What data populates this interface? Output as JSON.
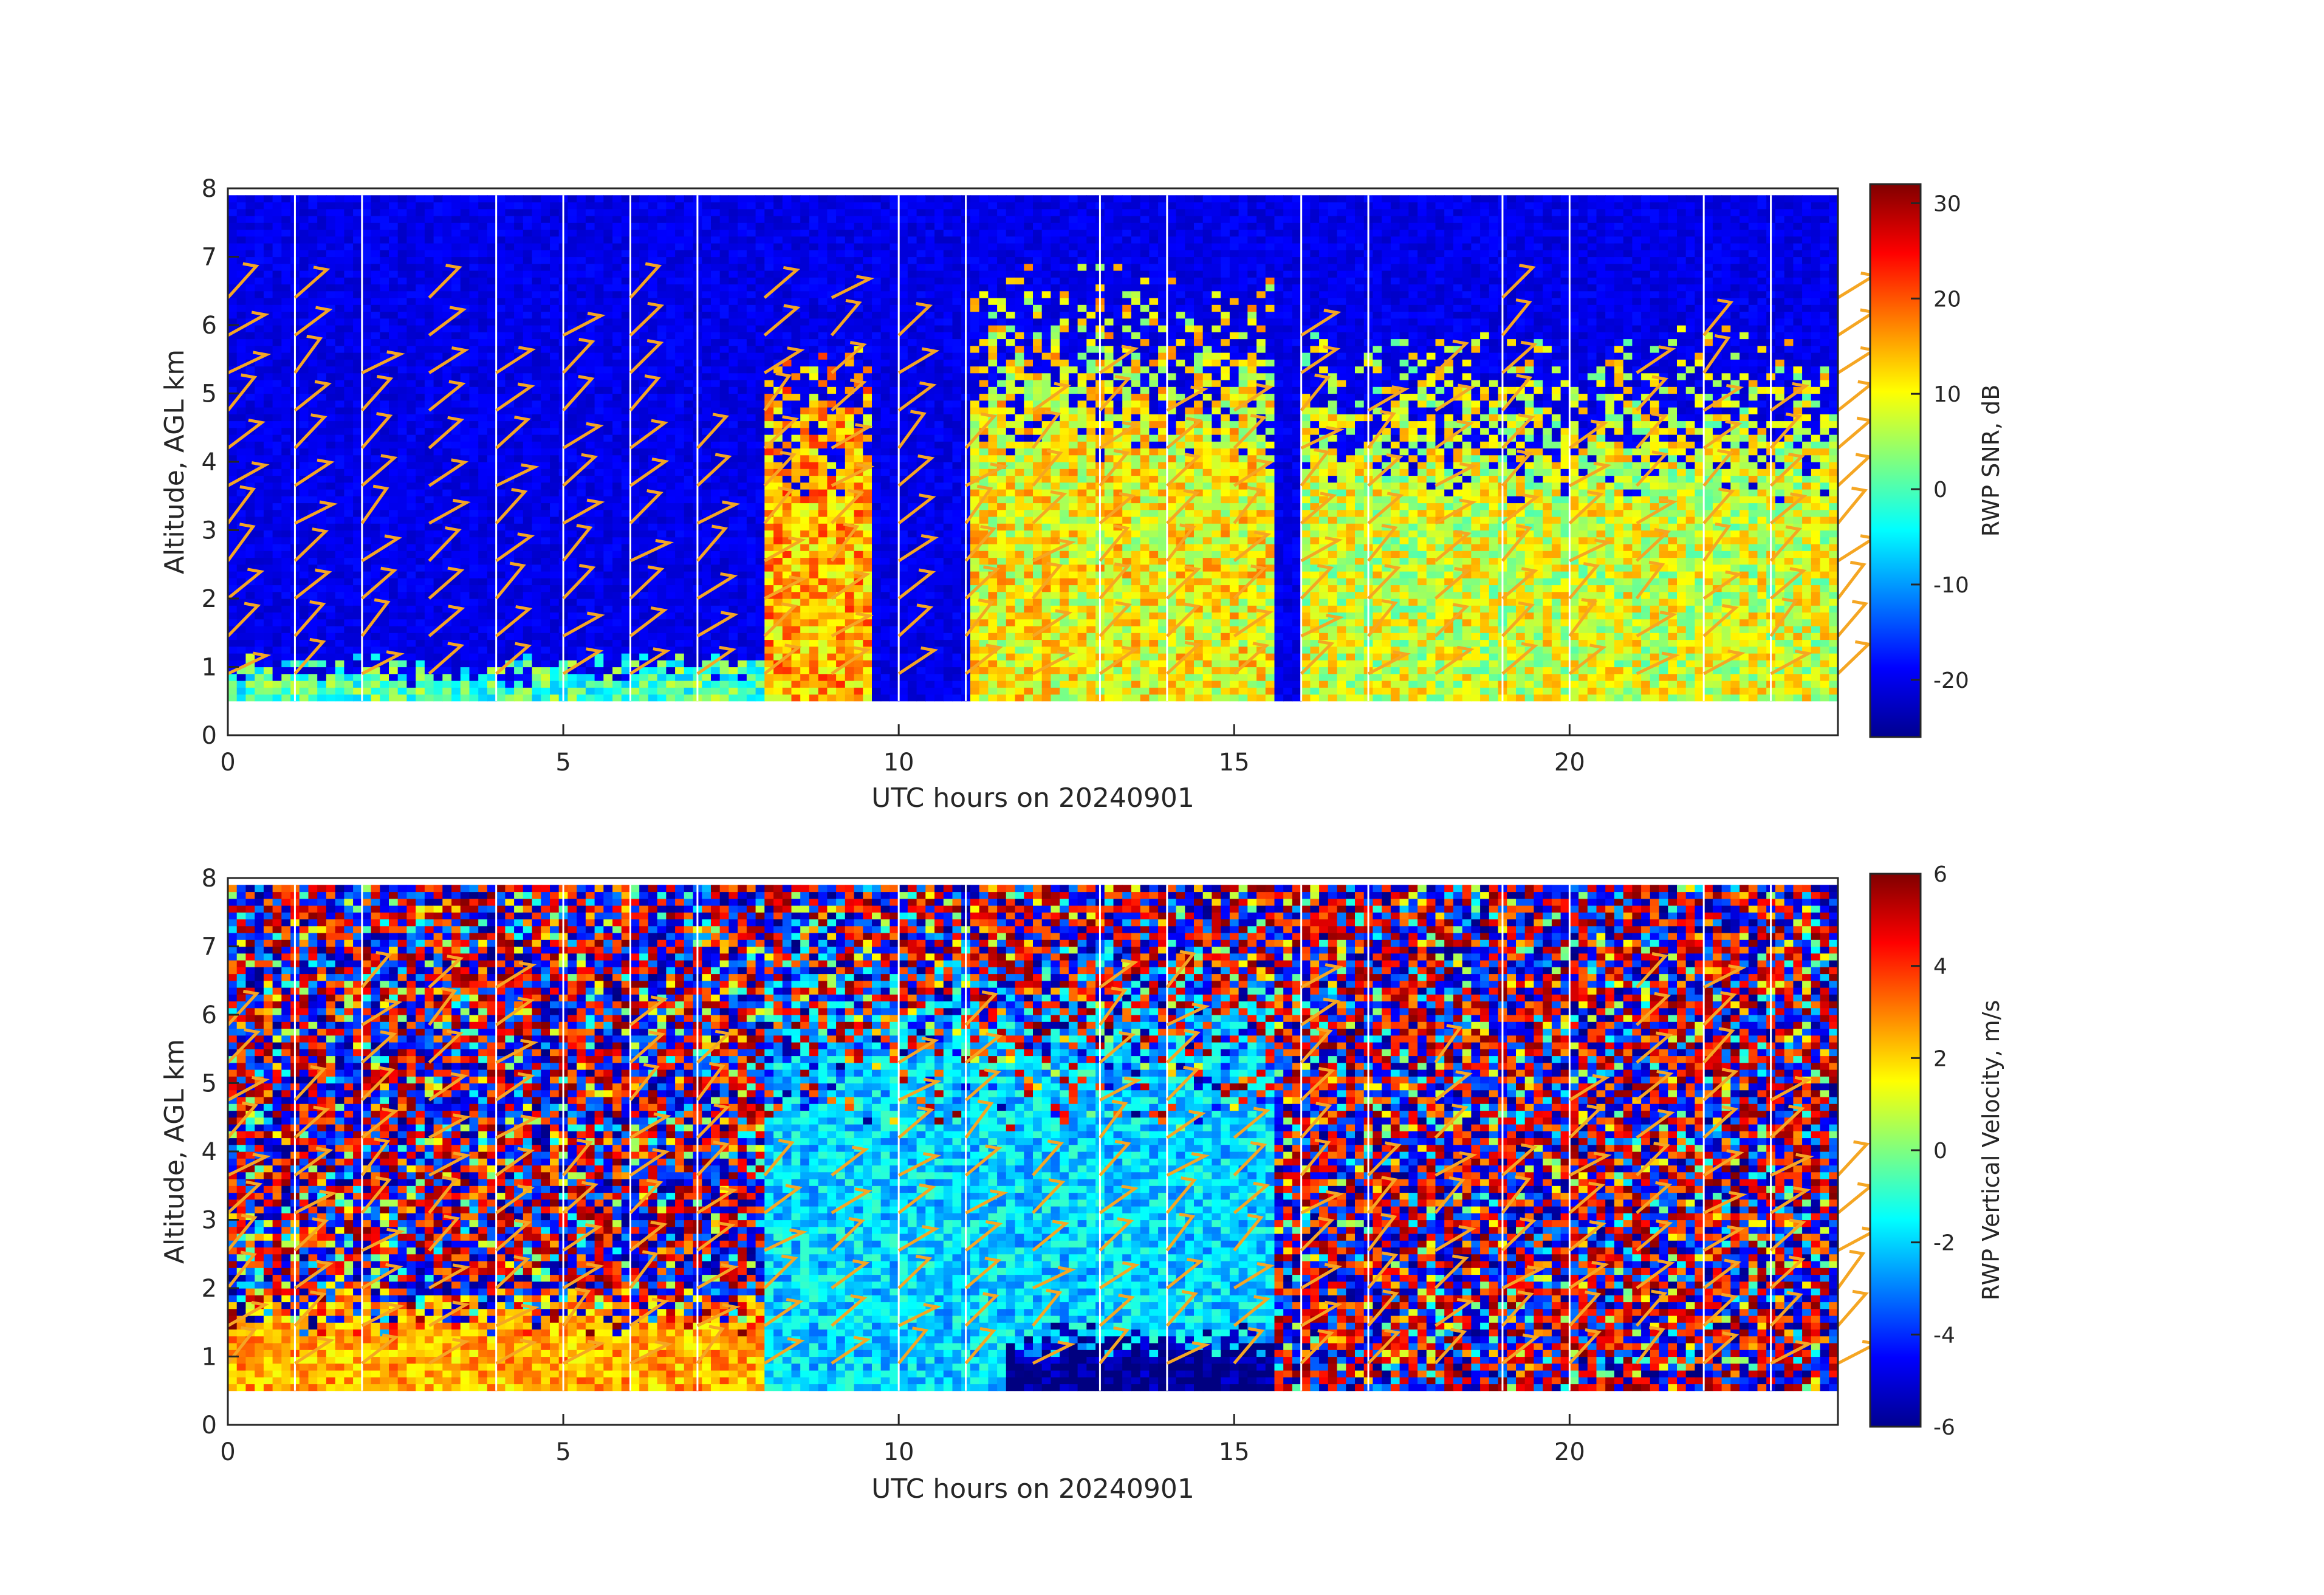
{
  "chart_data": [
    {
      "type": "heatmap",
      "title": "",
      "xlabel": "UTC hours on 20240901",
      "ylabel": "Altitude, AGL km",
      "xlim": [
        0,
        24
      ],
      "ylim": [
        0,
        8
      ],
      "xticks": [
        0,
        5,
        10,
        15,
        20
      ],
      "yticks": [
        0,
        1,
        2,
        3,
        4,
        5,
        6,
        7,
        8
      ],
      "colorbar": {
        "label": "RWP SNR, dB",
        "range": [
          -26,
          32
        ],
        "ticks": [
          30,
          20,
          10,
          0,
          -10,
          -20
        ]
      },
      "colormap": "jet",
      "data_altitude_range_km": [
        0.5,
        7.9
      ],
      "background_level": -20,
      "profile_gaps_hours": [
        1,
        2,
        4,
        5,
        6,
        7,
        10,
        11,
        13,
        14,
        16,
        17,
        19,
        20,
        22,
        23
      ],
      "overlay": "wind barbs (orange #f5a623) at hourly profile times",
      "features": [
        {
          "name": "shallow boundary layer echo",
          "x_range": [
            0,
            8
          ],
          "altitude_top_km": 1.2,
          "level": 0
        },
        {
          "name": "deep echo",
          "x_range": [
            8,
            9.5
          ],
          "altitude_top_km": 6.0,
          "level": 15
        },
        {
          "name": "deep echo",
          "x_range": [
            11,
            15.5
          ],
          "altitude_top_km": 7.0,
          "level": 10
        },
        {
          "name": "convective echo",
          "x_range": [
            16,
            24
          ],
          "altitude_top_km": 6.0,
          "level": 8
        }
      ]
    },
    {
      "type": "heatmap",
      "title": "",
      "xlabel": "UTC hours on 20240901",
      "ylabel": "Altitude, AGL km",
      "xlim": [
        0,
        24
      ],
      "ylim": [
        0,
        8
      ],
      "xticks": [
        0,
        5,
        10,
        15,
        20
      ],
      "yticks": [
        0,
        1,
        2,
        3,
        4,
        5,
        6,
        7,
        8
      ],
      "colorbar": {
        "label": "RWP Vertical Velocity, m/s",
        "range": [
          -6,
          6
        ],
        "ticks": [
          6,
          4,
          2,
          0,
          -2,
          -4,
          -6
        ]
      },
      "colormap": "jet",
      "data_altitude_range_km": [
        0.5,
        7.9
      ],
      "background": "noise (-6 to 6 m/s)",
      "profile_gaps_hours": [
        1,
        2,
        4,
        5,
        6,
        7,
        10,
        11,
        13,
        14,
        16,
        17,
        19,
        20,
        22,
        23
      ],
      "overlay": "wind barbs (orange #f5a623) at hourly profile times",
      "features": [
        {
          "name": "boundary layer updrafts",
          "x_range": [
            0,
            8
          ],
          "altitude_top_km": 2.0,
          "level": 2.5
        },
        {
          "name": "downdraft region",
          "x_range": [
            8,
            15.5
          ],
          "altitude_top_km": 7.0,
          "level": -2
        },
        {
          "name": "strong downdraft base",
          "x_range": [
            11.5,
            15.5
          ],
          "altitude_top_km": 1.5,
          "level": -6
        }
      ]
    }
  ],
  "colors": {
    "barb": "#f5a623",
    "axis": "#262626",
    "gap": "#ffffff"
  }
}
